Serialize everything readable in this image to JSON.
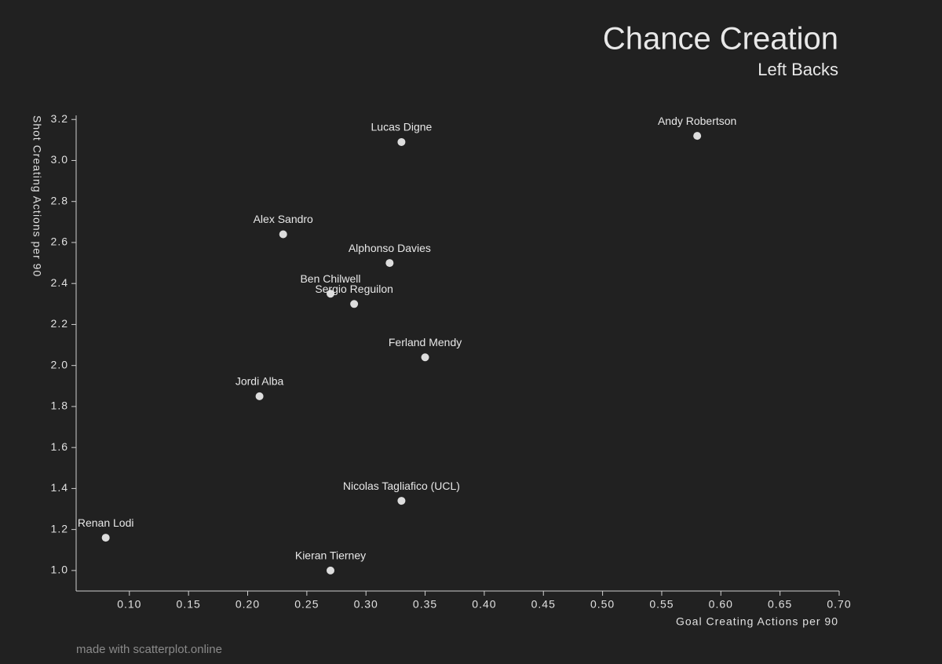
{
  "chart_data": {
    "type": "scatter",
    "title": "Chance Creation",
    "subtitle": "Left Backs",
    "x_label": "Goal Creating Actions per 90",
    "y_label": "Shot Creating Actions per 90",
    "footer": "made with scatterplot.online",
    "color": "#dddddd",
    "labels": [
      "Andy Robertson",
      "Lucas Digne",
      "Alex Sandro",
      "Alphonso Davies",
      "Ben Chilwell",
      "Sergio Reguilon",
      "Ferland Mendy",
      "Jordi Alba",
      "Nicolas Tagliafico (UCL)",
      "Renan Lodi",
      "Kieran Tierney"
    ],
    "x": [
      0.58,
      0.33,
      0.23,
      0.32,
      0.27,
      0.29,
      0.35,
      0.21,
      0.33,
      0.08,
      0.27
    ],
    "values": [
      3.12,
      3.09,
      2.64,
      2.5,
      2.35,
      2.3,
      2.04,
      1.85,
      1.34,
      1.16,
      1.0
    ],
    "xlim": [
      0.055,
      0.7
    ],
    "ylim": [
      0.9,
      3.22
    ],
    "xticks": [
      {
        "value": 0.1,
        "label": "0.10"
      },
      0.15,
      {
        "value": 0.2,
        "label": "0.20"
      },
      0.25,
      {
        "value": 0.3,
        "label": "0.30"
      },
      0.35,
      {
        "value": 0.4,
        "label": "0.40"
      },
      0.45,
      {
        "value": 0.5,
        "label": "0.50"
      },
      0.55,
      {
        "value": 0.6,
        "label": "0.60"
      },
      0.65,
      {
        "value": 0.7,
        "label": "0.70"
      }
    ],
    "yticks": [
      {
        "value": 1,
        "label": "1.0"
      },
      1.2,
      1.4,
      1.6,
      1.8,
      {
        "value": 2,
        "label": "2.0"
      },
      2.2,
      2.4,
      2.6,
      2.8,
      {
        "value": 3,
        "label": "3.0"
      },
      3.2
    ]
  }
}
